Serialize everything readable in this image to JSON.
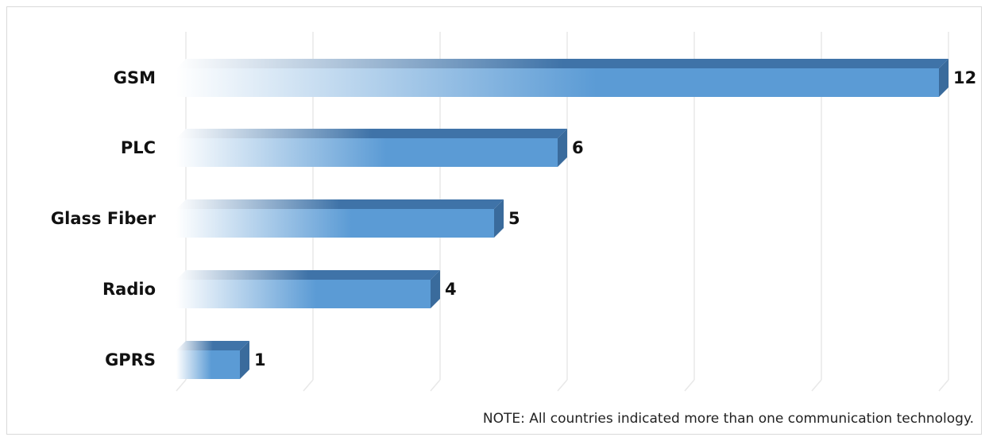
{
  "chart_data": {
    "type": "bar",
    "orientation": "horizontal",
    "categories": [
      "GSM",
      "PLC",
      "Glass Fiber",
      "Radio",
      "GPRS"
    ],
    "values": [
      12,
      6,
      5,
      4,
      1
    ],
    "data_labels": [
      "12",
      "6",
      "5",
      "4",
      "1"
    ],
    "xlim": [
      0,
      12
    ],
    "grid": true,
    "legend": "none",
    "title": "",
    "xlabel": "",
    "ylabel": "",
    "note": "NOTE: All countries indicated more than one communication technology.",
    "colors": {
      "bar_front": "#5b9bd5",
      "bar_top": "#3f73a8",
      "bar_side": "#3a6b9c"
    }
  }
}
